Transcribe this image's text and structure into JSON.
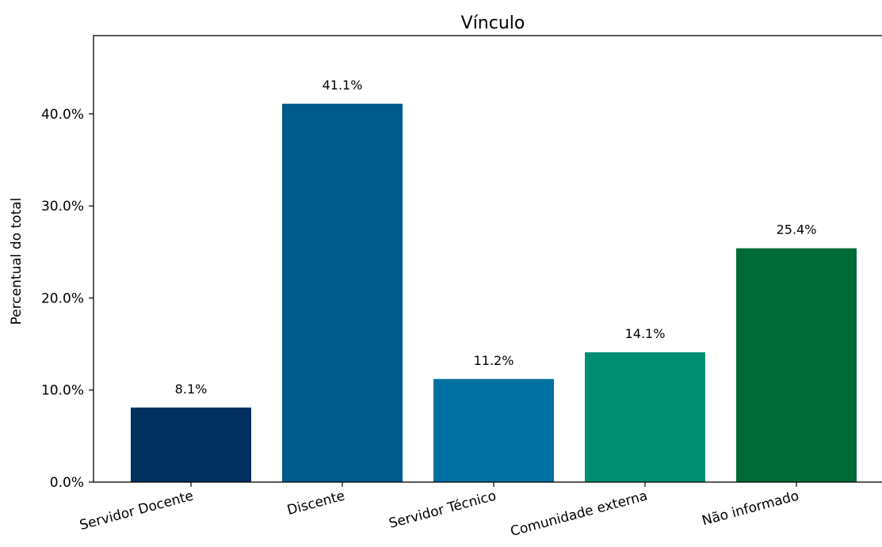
{
  "chart_data": {
    "type": "bar",
    "title": "Vínculo",
    "xlabel": "",
    "ylabel": "Percentual do total",
    "categories": [
      "Servidor Docente",
      "Discente",
      "Servidor Técnico",
      "Comunidade externa",
      "Não informado"
    ],
    "values": [
      8.1,
      41.1,
      11.2,
      14.1,
      25.4
    ],
    "data_labels": [
      "8.1%",
      "41.1%",
      "11.2%",
      "14.1%",
      "25.4%"
    ],
    "colors": [
      "#00305f",
      "#005a8c",
      "#0070a3",
      "#008f72",
      "#006b37"
    ],
    "ylim": [
      0,
      48.5
    ],
    "yticks": [
      0,
      10,
      20,
      30,
      40
    ],
    "ytick_labels": [
      "0.0%",
      "10.0%",
      "20.0%",
      "30.0%",
      "40.0%"
    ],
    "grid": false,
    "x_tick_rotation": "15 degrees"
  }
}
